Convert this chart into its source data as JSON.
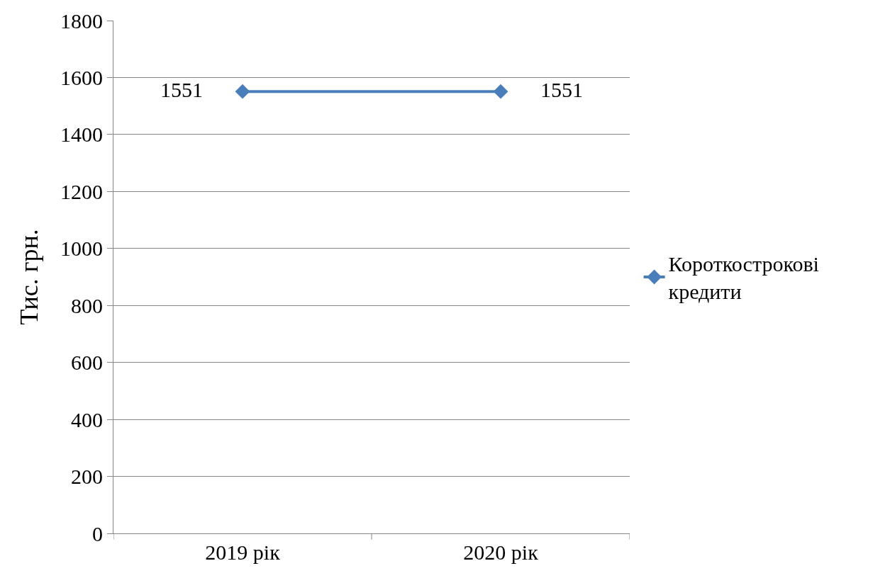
{
  "chart_data": {
    "type": "line",
    "ylabel": "Тис. грн.",
    "categories": [
      "2019 рік",
      "2020 рік"
    ],
    "series": [
      {
        "name": "Короткострокові кредити",
        "color": "#4a7ebb",
        "values": [
          1551,
          1551
        ]
      }
    ],
    "ylim": [
      0,
      1800
    ],
    "yticks": [
      0,
      200,
      400,
      600,
      800,
      1000,
      1200,
      1400,
      1600,
      1800
    ],
    "grid": "y",
    "legend": "right",
    "marker": "diamond",
    "line_style": "solid",
    "data_labels": true
  }
}
